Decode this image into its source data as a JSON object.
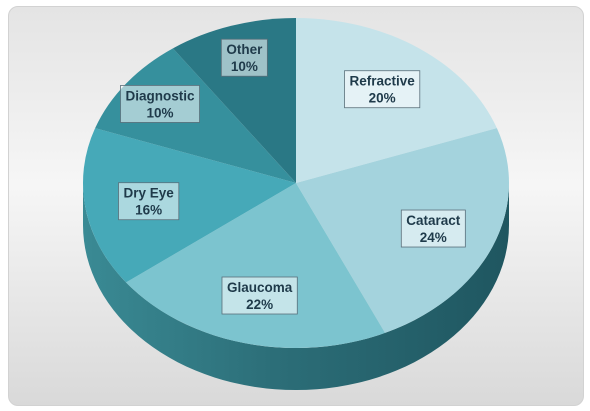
{
  "chart_data": {
    "type": "pie",
    "variant": "3d",
    "slices": [
      {
        "label": "Refractive",
        "value": 20,
        "value_label": "20%",
        "color": "#c5e3ea"
      },
      {
        "label": "Cataract",
        "value": 24,
        "value_label": "24%",
        "color": "#a4d3dd"
      },
      {
        "label": "Glaucoma",
        "value": 22,
        "value_label": "22%",
        "color": "#7cc4cf"
      },
      {
        "label": "Dry Eye",
        "value": 16,
        "value_label": "16%",
        "color": "#46a9b8"
      },
      {
        "label": "Diagnostic",
        "value": 10,
        "value_label": "10%",
        "color": "#36909d"
      },
      {
        "label": "Other",
        "value": 10,
        "value_label": "10%",
        "color": "#2a7885"
      }
    ],
    "start": "top",
    "direction": "clockwise",
    "side_color": "#2c6e78"
  }
}
